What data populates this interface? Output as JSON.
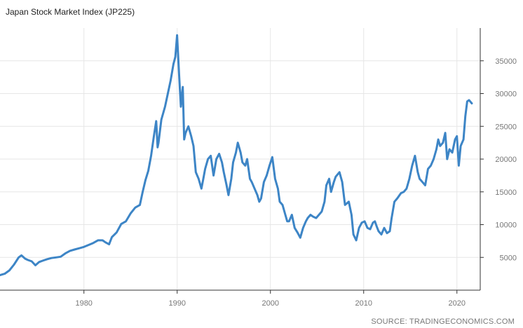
{
  "chart_data": {
    "type": "line",
    "title": "Japan Stock Market Index (JP225)",
    "source": "SOURCE: TRADINGECONOMICS.COM",
    "xlabel": "",
    "ylabel": "",
    "x_ticks": [
      1980,
      1990,
      2000,
      2010,
      2020
    ],
    "y_ticks": [
      5000,
      10000,
      15000,
      20000,
      25000,
      30000,
      35000
    ],
    "xlim": [
      1971.0,
      2022.5
    ],
    "ylim": [
      0,
      40000
    ],
    "grid": true,
    "legend": "none",
    "y_axis_position": "right",
    "series": [
      {
        "name": "",
        "color": "#3d85c6",
        "points": [
          [
            1971.0,
            2300
          ],
          [
            1971.5,
            2500
          ],
          [
            1972.0,
            3000
          ],
          [
            1972.5,
            3900
          ],
          [
            1973.0,
            5000
          ],
          [
            1973.3,
            5300
          ],
          [
            1973.7,
            4800
          ],
          [
            1974.0,
            4600
          ],
          [
            1974.4,
            4400
          ],
          [
            1974.8,
            3800
          ],
          [
            1975.2,
            4300
          ],
          [
            1975.6,
            4500
          ],
          [
            1976.0,
            4700
          ],
          [
            1976.5,
            4900
          ],
          [
            1977.0,
            5000
          ],
          [
            1977.5,
            5100
          ],
          [
            1978.0,
            5600
          ],
          [
            1978.5,
            6000
          ],
          [
            1979.0,
            6200
          ],
          [
            1979.5,
            6400
          ],
          [
            1980.0,
            6600
          ],
          [
            1980.5,
            6900
          ],
          [
            1981.0,
            7200
          ],
          [
            1981.5,
            7600
          ],
          [
            1982.0,
            7600
          ],
          [
            1982.3,
            7300
          ],
          [
            1982.7,
            7000
          ],
          [
            1983.0,
            8100
          ],
          [
            1983.5,
            8800
          ],
          [
            1984.0,
            10100
          ],
          [
            1984.5,
            10500
          ],
          [
            1985.0,
            11700
          ],
          [
            1985.5,
            12600
          ],
          [
            1986.0,
            13000
          ],
          [
            1986.3,
            15000
          ],
          [
            1986.6,
            16800
          ],
          [
            1986.9,
            18200
          ],
          [
            1987.2,
            20500
          ],
          [
            1987.5,
            23500
          ],
          [
            1987.75,
            25800
          ],
          [
            1987.9,
            21800
          ],
          [
            1988.0,
            22500
          ],
          [
            1988.3,
            26000
          ],
          [
            1988.7,
            28000
          ],
          [
            1989.0,
            30000
          ],
          [
            1989.3,
            32000
          ],
          [
            1989.6,
            34500
          ],
          [
            1989.8,
            35600
          ],
          [
            1989.99,
            38900
          ],
          [
            1990.2,
            33000
          ],
          [
            1990.4,
            28000
          ],
          [
            1990.6,
            31000
          ],
          [
            1990.75,
            23000
          ],
          [
            1990.9,
            24000
          ],
          [
            1991.2,
            25000
          ],
          [
            1991.5,
            23500
          ],
          [
            1991.75,
            22000
          ],
          [
            1992.0,
            18000
          ],
          [
            1992.3,
            17000
          ],
          [
            1992.6,
            15500
          ],
          [
            1992.8,
            17000
          ],
          [
            1993.0,
            18500
          ],
          [
            1993.3,
            20000
          ],
          [
            1993.6,
            20500
          ],
          [
            1993.9,
            17500
          ],
          [
            1994.2,
            20000
          ],
          [
            1994.5,
            20800
          ],
          [
            1994.8,
            19500
          ],
          [
            1995.0,
            18000
          ],
          [
            1995.3,
            16000
          ],
          [
            1995.5,
            14500
          ],
          [
            1995.8,
            17000
          ],
          [
            1996.0,
            19500
          ],
          [
            1996.3,
            21000
          ],
          [
            1996.5,
            22500
          ],
          [
            1996.8,
            21000
          ],
          [
            1997.0,
            19500
          ],
          [
            1997.3,
            19000
          ],
          [
            1997.5,
            20000
          ],
          [
            1997.8,
            17000
          ],
          [
            1998.0,
            16500
          ],
          [
            1998.3,
            15500
          ],
          [
            1998.6,
            14500
          ],
          [
            1998.8,
            13500
          ],
          [
            1999.0,
            14000
          ],
          [
            1999.3,
            16500
          ],
          [
            1999.6,
            17500
          ],
          [
            1999.9,
            19000
          ],
          [
            2000.2,
            20300
          ],
          [
            2000.5,
            17000
          ],
          [
            2000.8,
            15500
          ],
          [
            2001.0,
            13500
          ],
          [
            2001.3,
            13000
          ],
          [
            2001.6,
            11500
          ],
          [
            2001.8,
            10500
          ],
          [
            2002.0,
            10500
          ],
          [
            2002.3,
            11500
          ],
          [
            2002.6,
            9500
          ],
          [
            2002.9,
            8800
          ],
          [
            2003.2,
            8000
          ],
          [
            2003.5,
            9500
          ],
          [
            2003.8,
            10500
          ],
          [
            2004.0,
            11000
          ],
          [
            2004.3,
            11500
          ],
          [
            2004.6,
            11200
          ],
          [
            2004.9,
            11000
          ],
          [
            2005.2,
            11500
          ],
          [
            2005.5,
            12000
          ],
          [
            2005.8,
            13500
          ],
          [
            2006.0,
            16000
          ],
          [
            2006.3,
            17000
          ],
          [
            2006.5,
            15000
          ],
          [
            2006.8,
            16500
          ],
          [
            2007.0,
            17300
          ],
          [
            2007.4,
            18000
          ],
          [
            2007.7,
            16500
          ],
          [
            2008.0,
            13000
          ],
          [
            2008.4,
            13500
          ],
          [
            2008.7,
            11500
          ],
          [
            2008.9,
            8500
          ],
          [
            2009.2,
            7600
          ],
          [
            2009.5,
            9500
          ],
          [
            2009.8,
            10300
          ],
          [
            2010.1,
            10500
          ],
          [
            2010.4,
            9500
          ],
          [
            2010.7,
            9300
          ],
          [
            2011.0,
            10300
          ],
          [
            2011.2,
            10500
          ],
          [
            2011.4,
            9700
          ],
          [
            2011.6,
            9000
          ],
          [
            2011.9,
            8500
          ],
          [
            2012.2,
            9500
          ],
          [
            2012.5,
            8700
          ],
          [
            2012.8,
            9000
          ],
          [
            2013.0,
            11000
          ],
          [
            2013.3,
            13500
          ],
          [
            2013.6,
            14000
          ],
          [
            2014.0,
            14800
          ],
          [
            2014.3,
            15000
          ],
          [
            2014.6,
            15500
          ],
          [
            2014.9,
            17000
          ],
          [
            2015.2,
            19000
          ],
          [
            2015.5,
            20500
          ],
          [
            2015.8,
            18000
          ],
          [
            2016.0,
            17000
          ],
          [
            2016.3,
            16500
          ],
          [
            2016.6,
            16000
          ],
          [
            2016.9,
            18500
          ],
          [
            2017.2,
            19000
          ],
          [
            2017.5,
            20000
          ],
          [
            2017.8,
            21500
          ],
          [
            2018.0,
            23000
          ],
          [
            2018.2,
            22000
          ],
          [
            2018.5,
            22500
          ],
          [
            2018.75,
            24000
          ],
          [
            2018.95,
            20000
          ],
          [
            2019.2,
            21500
          ],
          [
            2019.5,
            21000
          ],
          [
            2019.8,
            23000
          ],
          [
            2020.0,
            23500
          ],
          [
            2020.2,
            19000
          ],
          [
            2020.4,
            22000
          ],
          [
            2020.7,
            23000
          ],
          [
            2020.9,
            26500
          ],
          [
            2021.1,
            28800
          ],
          [
            2021.3,
            29000
          ],
          [
            2021.6,
            28500
          ]
        ]
      }
    ]
  }
}
